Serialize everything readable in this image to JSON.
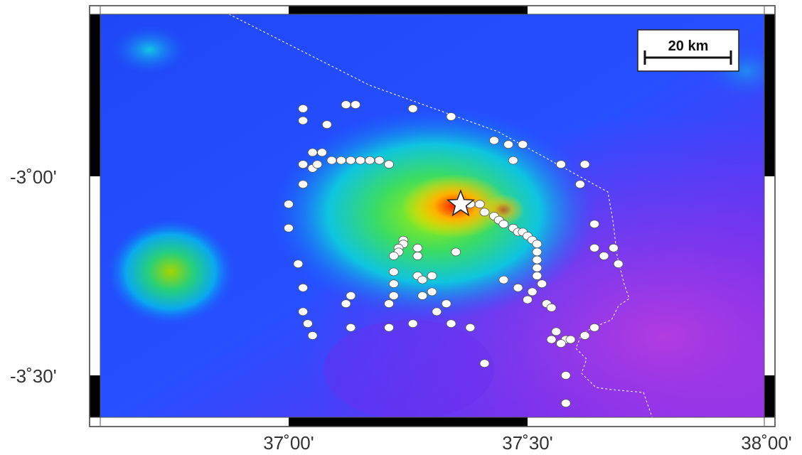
{
  "map": {
    "lat_ticks": [
      {
        "label": "-3˚00'",
        "value": -3.0
      },
      {
        "label": "-3˚30'",
        "value": -3.5
      }
    ],
    "lon_ticks": [
      {
        "label": "37˚00'",
        "value": 37.0
      },
      {
        "label": "37˚30'",
        "value": 37.5
      },
      {
        "label": "38˚00'",
        "value": 38.0
      }
    ],
    "scale_bar": {
      "label": "20 km"
    },
    "colors": {
      "low": "#1f3cff",
      "mid": "#00b0ff",
      "high": "#ffd000",
      "peak": "#ff2a00",
      "southeast": "#8f2fe8",
      "marker": "#ffffff",
      "border": "#d9d9ff"
    },
    "epicenter": {
      "symbol": "star",
      "lon": 37.36,
      "lat": -3.07
    },
    "stations": [
      [
        37.03,
        -2.83
      ],
      [
        37.03,
        -2.86
      ],
      [
        37.08,
        -2.87
      ],
      [
        37.12,
        -2.82
      ],
      [
        37.14,
        -2.82
      ],
      [
        37.26,
        -2.83
      ],
      [
        37.34,
        -2.85
      ],
      [
        37.43,
        -2.91
      ],
      [
        37.46,
        -2.92
      ],
      [
        37.49,
        -2.92
      ],
      [
        37.47,
        -2.96
      ],
      [
        37.57,
        -2.97
      ],
      [
        37.62,
        -2.97
      ],
      [
        37.61,
        -3.02
      ],
      [
        37.05,
        -2.94
      ],
      [
        37.07,
        -2.94
      ],
      [
        37.03,
        -2.97
      ],
      [
        37.05,
        -2.98
      ],
      [
        37.06,
        -2.97
      ],
      [
        37.09,
        -2.96
      ],
      [
        37.11,
        -2.96
      ],
      [
        37.13,
        -2.96
      ],
      [
        37.15,
        -2.96
      ],
      [
        37.17,
        -2.96
      ],
      [
        37.19,
        -2.96
      ],
      [
        37.21,
        -2.97
      ],
      [
        37.03,
        -3.02
      ],
      [
        37.0,
        -3.07
      ],
      [
        37.0,
        -3.13
      ],
      [
        37.02,
        -3.22
      ],
      [
        37.03,
        -3.28
      ],
      [
        37.03,
        -3.34
      ],
      [
        37.04,
        -3.37
      ],
      [
        37.05,
        -3.4
      ],
      [
        37.38,
        -3.07
      ],
      [
        37.4,
        -3.07
      ],
      [
        37.41,
        -3.09
      ],
      [
        37.43,
        -3.1
      ],
      [
        37.44,
        -3.11
      ],
      [
        37.45,
        -3.12
      ],
      [
        37.47,
        -3.13
      ],
      [
        37.48,
        -3.14
      ],
      [
        37.49,
        -3.14
      ],
      [
        37.5,
        -3.15
      ],
      [
        37.51,
        -3.16
      ],
      [
        37.52,
        -3.17
      ],
      [
        37.52,
        -3.19
      ],
      [
        37.52,
        -3.21
      ],
      [
        37.52,
        -3.23
      ],
      [
        37.52,
        -3.25
      ],
      [
        37.53,
        -3.27
      ],
      [
        37.51,
        -3.29
      ],
      [
        37.5,
        -3.31
      ],
      [
        37.54,
        -3.32
      ],
      [
        37.24,
        -3.16
      ],
      [
        37.24,
        -3.17
      ],
      [
        37.23,
        -3.18
      ],
      [
        37.23,
        -3.19
      ],
      [
        37.22,
        -3.2
      ],
      [
        37.27,
        -3.18
      ],
      [
        37.27,
        -3.2
      ],
      [
        37.35,
        -3.19
      ],
      [
        37.64,
        -3.12
      ],
      [
        37.64,
        -3.18
      ],
      [
        37.66,
        -3.2
      ],
      [
        37.69,
        -3.22
      ],
      [
        37.68,
        -3.18
      ],
      [
        37.22,
        -3.24
      ],
      [
        37.27,
        -3.25
      ],
      [
        37.3,
        -3.25
      ],
      [
        37.22,
        -3.27
      ],
      [
        37.22,
        -3.3
      ],
      [
        37.28,
        -3.3
      ],
      [
        37.3,
        -3.29
      ],
      [
        37.13,
        -3.3
      ],
      [
        37.12,
        -3.32
      ],
      [
        37.21,
        -3.32
      ],
      [
        37.33,
        -3.32
      ],
      [
        37.31,
        -3.34
      ],
      [
        37.26,
        -3.37
      ],
      [
        37.34,
        -3.37
      ],
      [
        37.28,
        -3.26
      ],
      [
        37.45,
        -3.26
      ],
      [
        37.48,
        -3.28
      ],
      [
        37.13,
        -3.38
      ],
      [
        37.21,
        -3.38
      ],
      [
        37.38,
        -3.38
      ],
      [
        37.55,
        -3.33
      ],
      [
        37.56,
        -3.39
      ],
      [
        37.58,
        -3.41
      ],
      [
        37.59,
        -3.41
      ],
      [
        37.62,
        -3.4
      ],
      [
        37.57,
        -3.42
      ],
      [
        37.55,
        -3.41
      ],
      [
        37.64,
        -3.38
      ],
      [
        37.41,
        -3.47
      ],
      [
        37.58,
        -3.5
      ],
      [
        37.58,
        -3.57
      ]
    ]
  }
}
